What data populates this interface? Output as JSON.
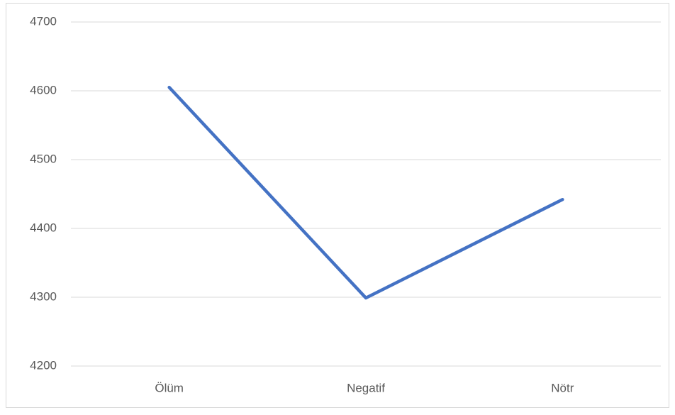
{
  "chart_data": {
    "type": "line",
    "categories": [
      "Ölüm",
      "Negatif",
      "Nötr"
    ],
    "series": [
      {
        "color": "#4472c4",
        "values": [
          4605,
          4299,
          4442
        ]
      }
    ],
    "ylim": [
      4200,
      4700
    ],
    "yticks": [
      4200,
      4300,
      4400,
      4500,
      4600,
      4700
    ],
    "grid": true
  }
}
